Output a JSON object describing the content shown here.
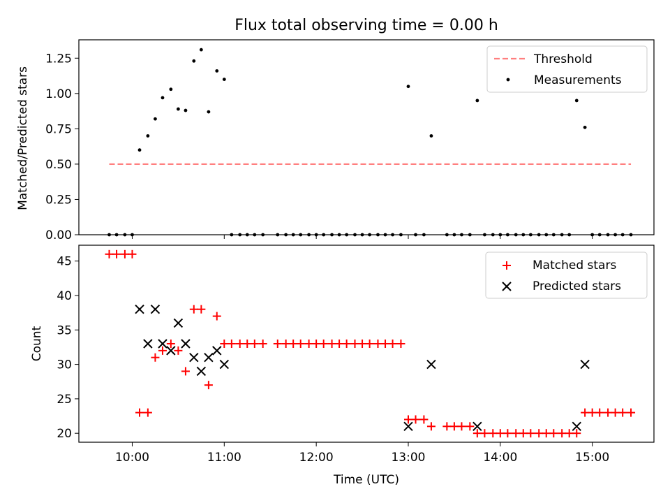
{
  "chart_data": [
    {
      "type": "scatter",
      "title": "Flux total observing time = 0.00 h",
      "xlabel": "",
      "ylabel": "Matched/Predicted stars",
      "xlim": [
        9.42,
        15.67
      ],
      "ylim": [
        0.0,
        1.38
      ],
      "xticks": [
        10,
        11,
        12,
        13,
        14,
        15
      ],
      "xtick_labels": [
        "",
        "",
        "",
        "",
        "",
        ""
      ],
      "yticks": [
        0.0,
        0.25,
        0.5,
        0.75,
        1.0,
        1.25
      ],
      "ytick_labels": [
        "0.00",
        "0.25",
        "0.50",
        "0.75",
        "1.00",
        "1.25"
      ],
      "legend": [
        "Threshold",
        "Measurements"
      ],
      "legend_position": "top-right",
      "threshold": {
        "name": "Threshold",
        "y": 0.5,
        "x": [
          9.75,
          15.42
        ],
        "color": "#ff7f7f"
      },
      "series": [
        {
          "name": "Measurements",
          "color": "#000000",
          "x": [
            9.75,
            9.83,
            9.92,
            10.0,
            10.08,
            10.17,
            10.25,
            10.33,
            10.42,
            10.5,
            10.58,
            10.67,
            10.75,
            10.83,
            10.92,
            11.0,
            11.08,
            11.17,
            11.25,
            11.33,
            11.42,
            11.58,
            11.67,
            11.75,
            11.83,
            11.92,
            12.0,
            12.08,
            12.17,
            12.25,
            12.33,
            12.42,
            12.5,
            12.58,
            12.67,
            12.75,
            12.83,
            12.92,
            13.0,
            13.08,
            13.17,
            13.25,
            13.42,
            13.5,
            13.58,
            13.67,
            13.75,
            13.83,
            13.92,
            14.0,
            14.08,
            14.17,
            14.25,
            14.33,
            14.42,
            14.5,
            14.58,
            14.67,
            14.75,
            14.83,
            14.92,
            15.0,
            15.08,
            15.17,
            15.25,
            15.33,
            15.42
          ],
          "y": [
            0,
            0,
            0,
            0,
            0.6,
            0.7,
            0.82,
            0.97,
            1.03,
            0.89,
            0.88,
            1.23,
            1.31,
            0.87,
            1.16,
            1.1,
            0,
            0,
            0,
            0,
            0,
            0,
            0,
            0,
            0,
            0,
            0,
            0,
            0,
            0,
            0,
            0,
            0,
            0,
            0,
            0,
            0,
            0,
            1.05,
            0,
            0,
            0.7,
            0,
            0,
            0,
            0,
            0.95,
            0,
            0,
            0,
            0,
            0,
            0,
            0,
            0,
            0,
            0,
            0,
            0,
            0.95,
            0.76,
            0,
            0,
            0,
            0,
            0,
            0
          ]
        }
      ]
    },
    {
      "type": "scatter",
      "title": "",
      "xlabel": "Time (UTC)",
      "ylabel": "Count",
      "xlim": [
        9.42,
        15.67
      ],
      "ylim": [
        18.7,
        47.3
      ],
      "xticks": [
        10,
        11,
        12,
        13,
        14,
        15
      ],
      "xtick_labels": [
        "10:00",
        "11:00",
        "12:00",
        "13:00",
        "14:00",
        "15:00"
      ],
      "yticks": [
        20,
        25,
        30,
        35,
        40,
        45
      ],
      "ytick_labels": [
        "20",
        "25",
        "30",
        "35",
        "40",
        "45"
      ],
      "legend": [
        "Matched stars",
        "Predicted stars"
      ],
      "legend_position": "top-right",
      "series": [
        {
          "name": "Matched stars",
          "marker": "+",
          "color": "#ff0000",
          "x": [
            9.75,
            9.83,
            9.92,
            10.0,
            10.08,
            10.17,
            10.25,
            10.33,
            10.42,
            10.5,
            10.58,
            10.67,
            10.75,
            10.83,
            10.92,
            11.0,
            11.08,
            11.17,
            11.25,
            11.33,
            11.42,
            11.58,
            11.67,
            11.75,
            11.83,
            11.92,
            12.0,
            12.08,
            12.17,
            12.25,
            12.33,
            12.42,
            12.5,
            12.58,
            12.67,
            12.75,
            12.83,
            12.92,
            13.0,
            13.08,
            13.17,
            13.25,
            13.42,
            13.5,
            13.58,
            13.67,
            13.75,
            13.83,
            13.92,
            14.0,
            14.08,
            14.17,
            14.25,
            14.33,
            14.42,
            14.5,
            14.58,
            14.67,
            14.75,
            14.83,
            14.92,
            15.0,
            15.08,
            15.17,
            15.25,
            15.33,
            15.42
          ],
          "y": [
            46,
            46,
            46,
            46,
            23,
            23,
            31,
            32,
            33,
            32,
            29,
            38,
            38,
            27,
            37,
            33,
            33,
            33,
            33,
            33,
            33,
            33,
            33,
            33,
            33,
            33,
            33,
            33,
            33,
            33,
            33,
            33,
            33,
            33,
            33,
            33,
            33,
            33,
            22,
            22,
            22,
            21,
            21,
            21,
            21,
            21,
            20,
            20,
            20,
            20,
            20,
            20,
            20,
            20,
            20,
            20,
            20,
            20,
            20,
            20,
            23,
            23,
            23,
            23,
            23,
            23,
            23
          ]
        },
        {
          "name": "Predicted stars",
          "marker": "x",
          "color": "#000000",
          "x": [
            10.08,
            10.17,
            10.25,
            10.33,
            10.42,
            10.5,
            10.58,
            10.67,
            10.75,
            10.83,
            10.92,
            11.0,
            13.0,
            13.25,
            13.75,
            14.83,
            14.92
          ],
          "y": [
            38,
            33,
            38,
            33,
            32,
            36,
            33,
            31,
            29,
            31,
            32,
            30,
            21,
            30,
            21,
            21,
            30
          ]
        }
      ]
    }
  ]
}
